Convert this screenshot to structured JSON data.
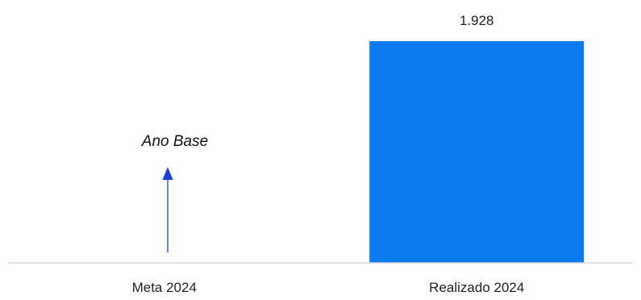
{
  "chart_data": {
    "type": "bar",
    "categories": [
      "Meta 2024",
      "Realizado 2024"
    ],
    "values": [
      null,
      1928
    ],
    "value_labels": [
      "",
      "1.928"
    ],
    "bar_color": "#0a7aec",
    "axis_color": "#d9d9d9",
    "label_color": "#222222",
    "annotation": {
      "text": "Ano Base",
      "category": "Meta 2024",
      "arrow_color": "#1f3fd8",
      "icon": "up-arrow-icon"
    },
    "grid": false,
    "legend": "none",
    "ylim": [
      0,
      1928
    ]
  }
}
